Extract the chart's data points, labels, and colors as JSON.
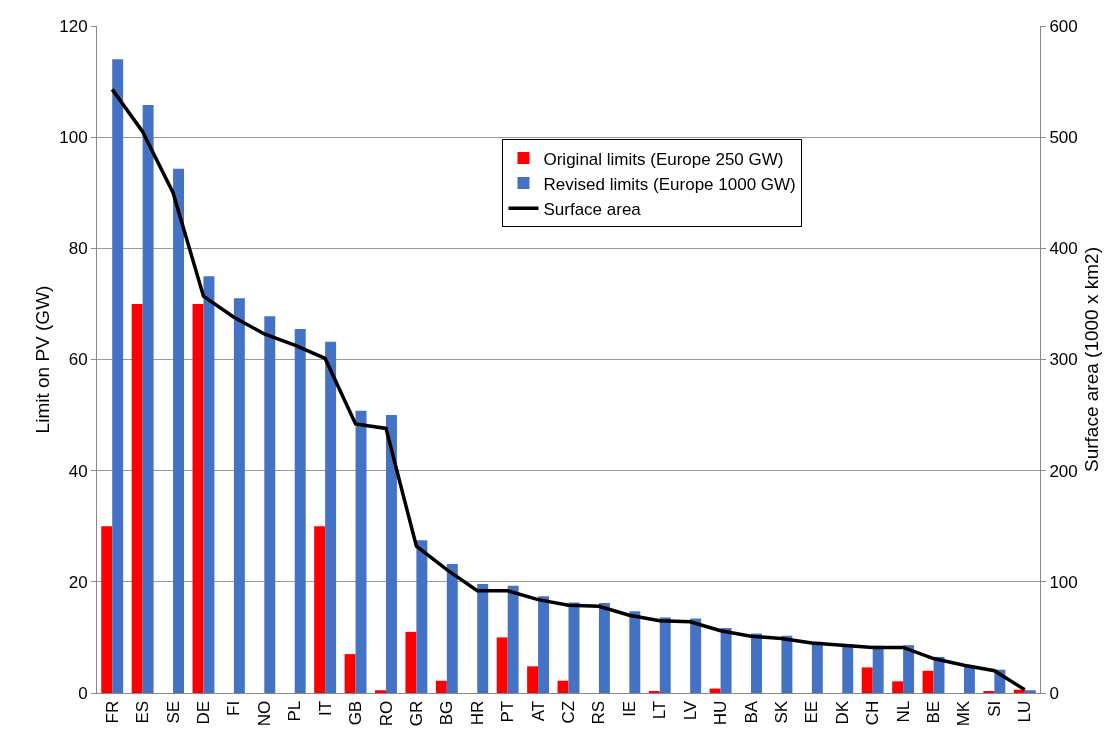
{
  "chart_data": {
    "type": "bar",
    "ylabel": "Limit on PV (GW)",
    "y2label": "Surface area (1000 x km2)",
    "categories": [
      "FR",
      "ES",
      "SE",
      "DE",
      "FI",
      "NO",
      "PL",
      "IT",
      "GB",
      "RO",
      "GR",
      "BG",
      "HR",
      "PT",
      "AT",
      "CZ",
      "RS",
      "IE",
      "LT",
      "LV",
      "HU",
      "BA",
      "SK",
      "EE",
      "DK",
      "CH",
      "NL",
      "BE",
      "MK",
      "SI",
      "LU"
    ],
    "series": [
      {
        "name": "Original limits (Europe 250 GW)",
        "color": "#ff0000",
        "values": [
          30,
          70,
          0,
          70,
          0,
          0,
          0,
          30,
          7,
          0.5,
          11,
          2.2,
          0,
          10,
          4.8,
          2.2,
          0,
          0,
          0.2,
          0,
          0.8,
          0,
          0,
          0,
          0,
          4.6,
          2.1,
          4,
          0,
          0.3,
          0.6
        ]
      },
      {
        "name": "Revised limits (Europe 1000 GW)",
        "color": "#4472c4",
        "values": [
          114,
          105.8,
          94.3,
          75,
          71,
          67.8,
          65.5,
          63.2,
          50.8,
          50,
          27.5,
          23.2,
          19.6,
          19.3,
          17.4,
          16.3,
          16.2,
          14.7,
          13.6,
          13.4,
          11.7,
          10.7,
          10.3,
          9.2,
          8.8,
          8.5,
          8.6,
          6.5,
          5,
          4.2,
          0.5
        ]
      },
      {
        "name": "Surface area",
        "type": "line",
        "axis": "y2",
        "color": "#000000",
        "values": [
          543,
          505,
          450,
          357,
          338,
          323,
          313,
          301,
          242,
          238,
          132,
          111,
          92,
          92,
          84,
          79,
          78,
          70,
          65,
          64,
          56,
          51,
          49,
          45,
          43,
          41,
          41,
          31,
          25,
          20,
          3
        ]
      }
    ],
    "ylim": [
      0,
      120
    ],
    "yticks": [
      0,
      20,
      40,
      60,
      80,
      100,
      120
    ],
    "y2lim": [
      0,
      600
    ],
    "y2ticks": [
      0,
      100,
      200,
      300,
      400,
      500,
      600
    ],
    "grid": "y",
    "legend": "top right",
    "marker": "none",
    "line_style": "solid"
  }
}
